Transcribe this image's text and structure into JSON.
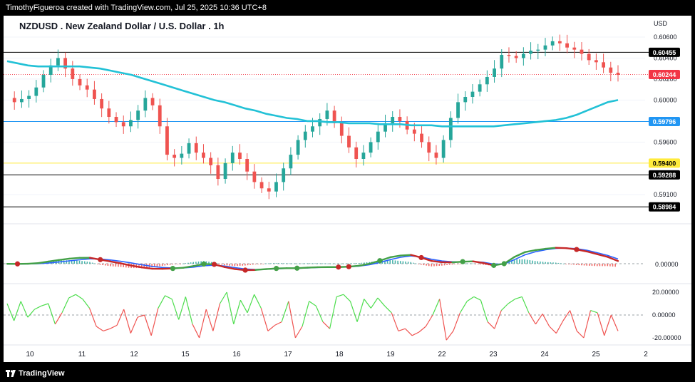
{
  "header": {
    "attribution": "TimothyFigueroa created with TradingView.com, Jul 25, 2025 10:36 UTC+8"
  },
  "footer": {
    "brand": "TradingView"
  },
  "chart_data": [
    {
      "type": "candlestick",
      "title": "NZDUSD . New Zealand Dollar / U.S. Dollar . 1h",
      "currency_label": "USD",
      "ylim": [
        0.5885,
        0.6062
      ],
      "price_ticks": [
        "0.60600",
        "0.60400",
        "0.60200",
        "0.60000",
        "0.59600",
        "0.59100"
      ],
      "price_tick_values": [
        0.606,
        0.604,
        0.602,
        0.6,
        0.596,
        0.591
      ],
      "x_ticks": [
        "10",
        "11",
        "12",
        "15",
        "16",
        "17",
        "18",
        "19",
        "22",
        "23",
        "24",
        "25",
        "2"
      ],
      "price_series": [
        0.6002,
        0.5998,
        0.6001,
        0.6004,
        0.6012,
        0.6024,
        0.6033,
        0.604,
        0.603,
        0.602,
        0.6014,
        0.601,
        0.6001,
        0.5992,
        0.5984,
        0.5979,
        0.5975,
        0.5981,
        0.599,
        0.6002,
        0.5995,
        0.5975,
        0.5948,
        0.5945,
        0.5949,
        0.5959,
        0.595,
        0.5945,
        0.5938,
        0.5925,
        0.594,
        0.595,
        0.5944,
        0.5932,
        0.5922,
        0.5916,
        0.5913,
        0.5922,
        0.5935,
        0.5948,
        0.5962,
        0.597,
        0.5975,
        0.5982,
        0.599,
        0.5978,
        0.5966,
        0.5955,
        0.5944,
        0.595,
        0.596,
        0.597,
        0.5978,
        0.5984,
        0.598,
        0.5972,
        0.5968,
        0.596,
        0.595,
        0.5945,
        0.5962,
        0.5983,
        0.5998,
        0.6003,
        0.6008,
        0.6015,
        0.6022,
        0.603,
        0.6043,
        0.6042,
        0.604,
        0.6044,
        0.6047,
        0.6048,
        0.6052,
        0.6056,
        0.6054,
        0.605,
        0.6048,
        0.6044,
        0.6038,
        0.6036,
        0.6031,
        0.6026,
        0.6024
      ],
      "moving_average": [
        0.6037,
        0.6035,
        0.6033,
        0.6032,
        0.6032,
        0.6032,
        0.6032,
        0.6032,
        0.6031,
        0.603,
        0.6028,
        0.6026,
        0.6024,
        0.6021,
        0.6018,
        0.6015,
        0.6012,
        0.6009,
        0.6006,
        0.6003,
        0.6,
        0.5998,
        0.5995,
        0.5992,
        0.599,
        0.5987,
        0.5985,
        0.5983,
        0.5982,
        0.598,
        0.598,
        0.5979,
        0.5979,
        0.5978,
        0.5978,
        0.5978,
        0.5977,
        0.5977,
        0.5977,
        0.5976,
        0.5976,
        0.5976,
        0.5975,
        0.5975,
        0.5975,
        0.5975,
        0.5975,
        0.5975,
        0.5976,
        0.5977,
        0.5978,
        0.5979,
        0.598,
        0.5981,
        0.5983,
        0.5986,
        0.599,
        0.5994,
        0.5998,
        0.6
      ],
      "levels": [
        {
          "value": 0.60455,
          "label": "0.60455",
          "color": "#000000",
          "text_color": "#ffffff",
          "style": "solid"
        },
        {
          "value": 0.60244,
          "label": "0.60244",
          "color": "#f23645",
          "text_color": "#ffffff",
          "style": "dotted"
        },
        {
          "value": 0.59796,
          "label": "0.59796",
          "color": "#2196f3",
          "text_color": "#ffffff",
          "style": "solid"
        },
        {
          "value": 0.594,
          "label": "0.59400",
          "color": "#ffeb3b",
          "text_color": "#000000",
          "style": "solid"
        },
        {
          "value": 0.59288,
          "label": "0.59288",
          "color": "#000000",
          "text_color": "#ffffff",
          "style": "solid"
        },
        {
          "value": 0.58984,
          "label": "0.58984",
          "color": "#000000",
          "text_color": "#ffffff",
          "style": "solid"
        }
      ],
      "colors": {
        "up": "#26a69a",
        "down": "#ef5350",
        "moving_average": "#22c1d6"
      }
    },
    {
      "type": "line",
      "title": "",
      "zero_label": "0.00000",
      "macd_line": [
        -0.02,
        -0.03,
        -0.01,
        0.08,
        0.32,
        0.55,
        0.74,
        0.86,
        0.88,
        0.6,
        0.32,
        0.05,
        -0.28,
        -0.55,
        -0.74,
        -0.76,
        -0.7,
        -0.6,
        -0.35,
        -0.05,
        -0.1,
        -0.5,
        -0.8,
        -0.95,
        -0.92,
        -0.8,
        -0.7,
        -0.66,
        -0.66,
        -0.58,
        -0.52,
        -0.5,
        -0.5,
        -0.44,
        -0.3,
        0.0,
        0.45,
        0.95,
        1.2,
        1.3,
        0.9,
        0.4,
        0.22,
        0.2,
        0.3,
        0.35,
        0.1,
        -0.25,
        0.0,
        1.0,
        1.7,
        2.0,
        2.2,
        2.35,
        2.3,
        2.1,
        1.8,
        1.4,
        1.0,
        0.4
      ],
      "signal_line": [
        -0.05,
        -0.04,
        -0.03,
        0.0,
        0.1,
        0.25,
        0.42,
        0.58,
        0.72,
        0.7,
        0.55,
        0.35,
        0.12,
        -0.15,
        -0.4,
        -0.56,
        -0.63,
        -0.62,
        -0.5,
        -0.3,
        -0.22,
        -0.35,
        -0.58,
        -0.78,
        -0.86,
        -0.82,
        -0.76,
        -0.7,
        -0.68,
        -0.62,
        -0.56,
        -0.52,
        -0.5,
        -0.46,
        -0.36,
        -0.15,
        0.18,
        0.6,
        0.95,
        1.15,
        1.0,
        0.65,
        0.4,
        0.28,
        0.28,
        0.32,
        0.2,
        -0.05,
        -0.05,
        0.6,
        1.3,
        1.75,
        2.05,
        2.25,
        2.32,
        2.22,
        1.98,
        1.62,
        1.22,
        0.7
      ],
      "cross_points": [
        {
          "index": 1,
          "color": "#c62828"
        },
        {
          "index": 9,
          "color": "#c62828"
        },
        {
          "index": 16,
          "color": "#43a047"
        },
        {
          "index": 19,
          "color": "#43a047"
        },
        {
          "index": 20,
          "color": "#c62828"
        },
        {
          "index": 23,
          "color": "#c62828"
        },
        {
          "index": 26,
          "color": "#43a047"
        },
        {
          "index": 28,
          "color": "#43a047"
        },
        {
          "index": 32,
          "color": "#c62828"
        },
        {
          "index": 33,
          "color": "#c62828"
        },
        {
          "index": 36,
          "color": "#43a047"
        },
        {
          "index": 40,
          "color": "#c62828"
        },
        {
          "index": 44,
          "color": "#43a047"
        },
        {
          "index": 47,
          "color": "#43a047"
        },
        {
          "index": 48,
          "color": "#43a047"
        },
        {
          "index": 55,
          "color": "#c62828"
        }
      ],
      "colors": {
        "macd_up": "#43a047",
        "macd_down": "#c62828",
        "signal": "#2962ff",
        "hist_up": "#26a69a",
        "hist_down": "#ef5350"
      }
    },
    {
      "type": "line",
      "title": "",
      "ylim": [
        -25,
        25
      ],
      "tick_labels": [
        "20.00000",
        "0.00000",
        "-20.00000"
      ],
      "tick_values": [
        20,
        0,
        -20
      ],
      "values": [
        10,
        -5,
        12,
        -2,
        5,
        8,
        10,
        -8,
        2,
        15,
        18,
        14,
        6,
        -10,
        -14,
        -12,
        -9,
        5,
        -16,
        -2,
        0,
        -18,
        6,
        17,
        14,
        -4,
        16,
        -8,
        -20,
        5,
        -14,
        10,
        20,
        -8,
        13,
        2,
        18,
        6,
        -14,
        -9,
        -6,
        12,
        -20,
        -10,
        12,
        8,
        -6,
        -12,
        16,
        18,
        12,
        -6,
        14,
        6,
        15,
        8,
        2,
        -14,
        -12,
        -18,
        -15,
        -10,
        0,
        14,
        -22,
        -14,
        2,
        12,
        16,
        13,
        -6,
        -12,
        4,
        10,
        14,
        16,
        2,
        -8,
        1,
        -10,
        -16,
        -5,
        4,
        -14,
        -20,
        4,
        2,
        -18,
        0,
        -14
      ],
      "colors": {
        "above": "#4cdd4c",
        "below": "#ef5350"
      }
    }
  ]
}
